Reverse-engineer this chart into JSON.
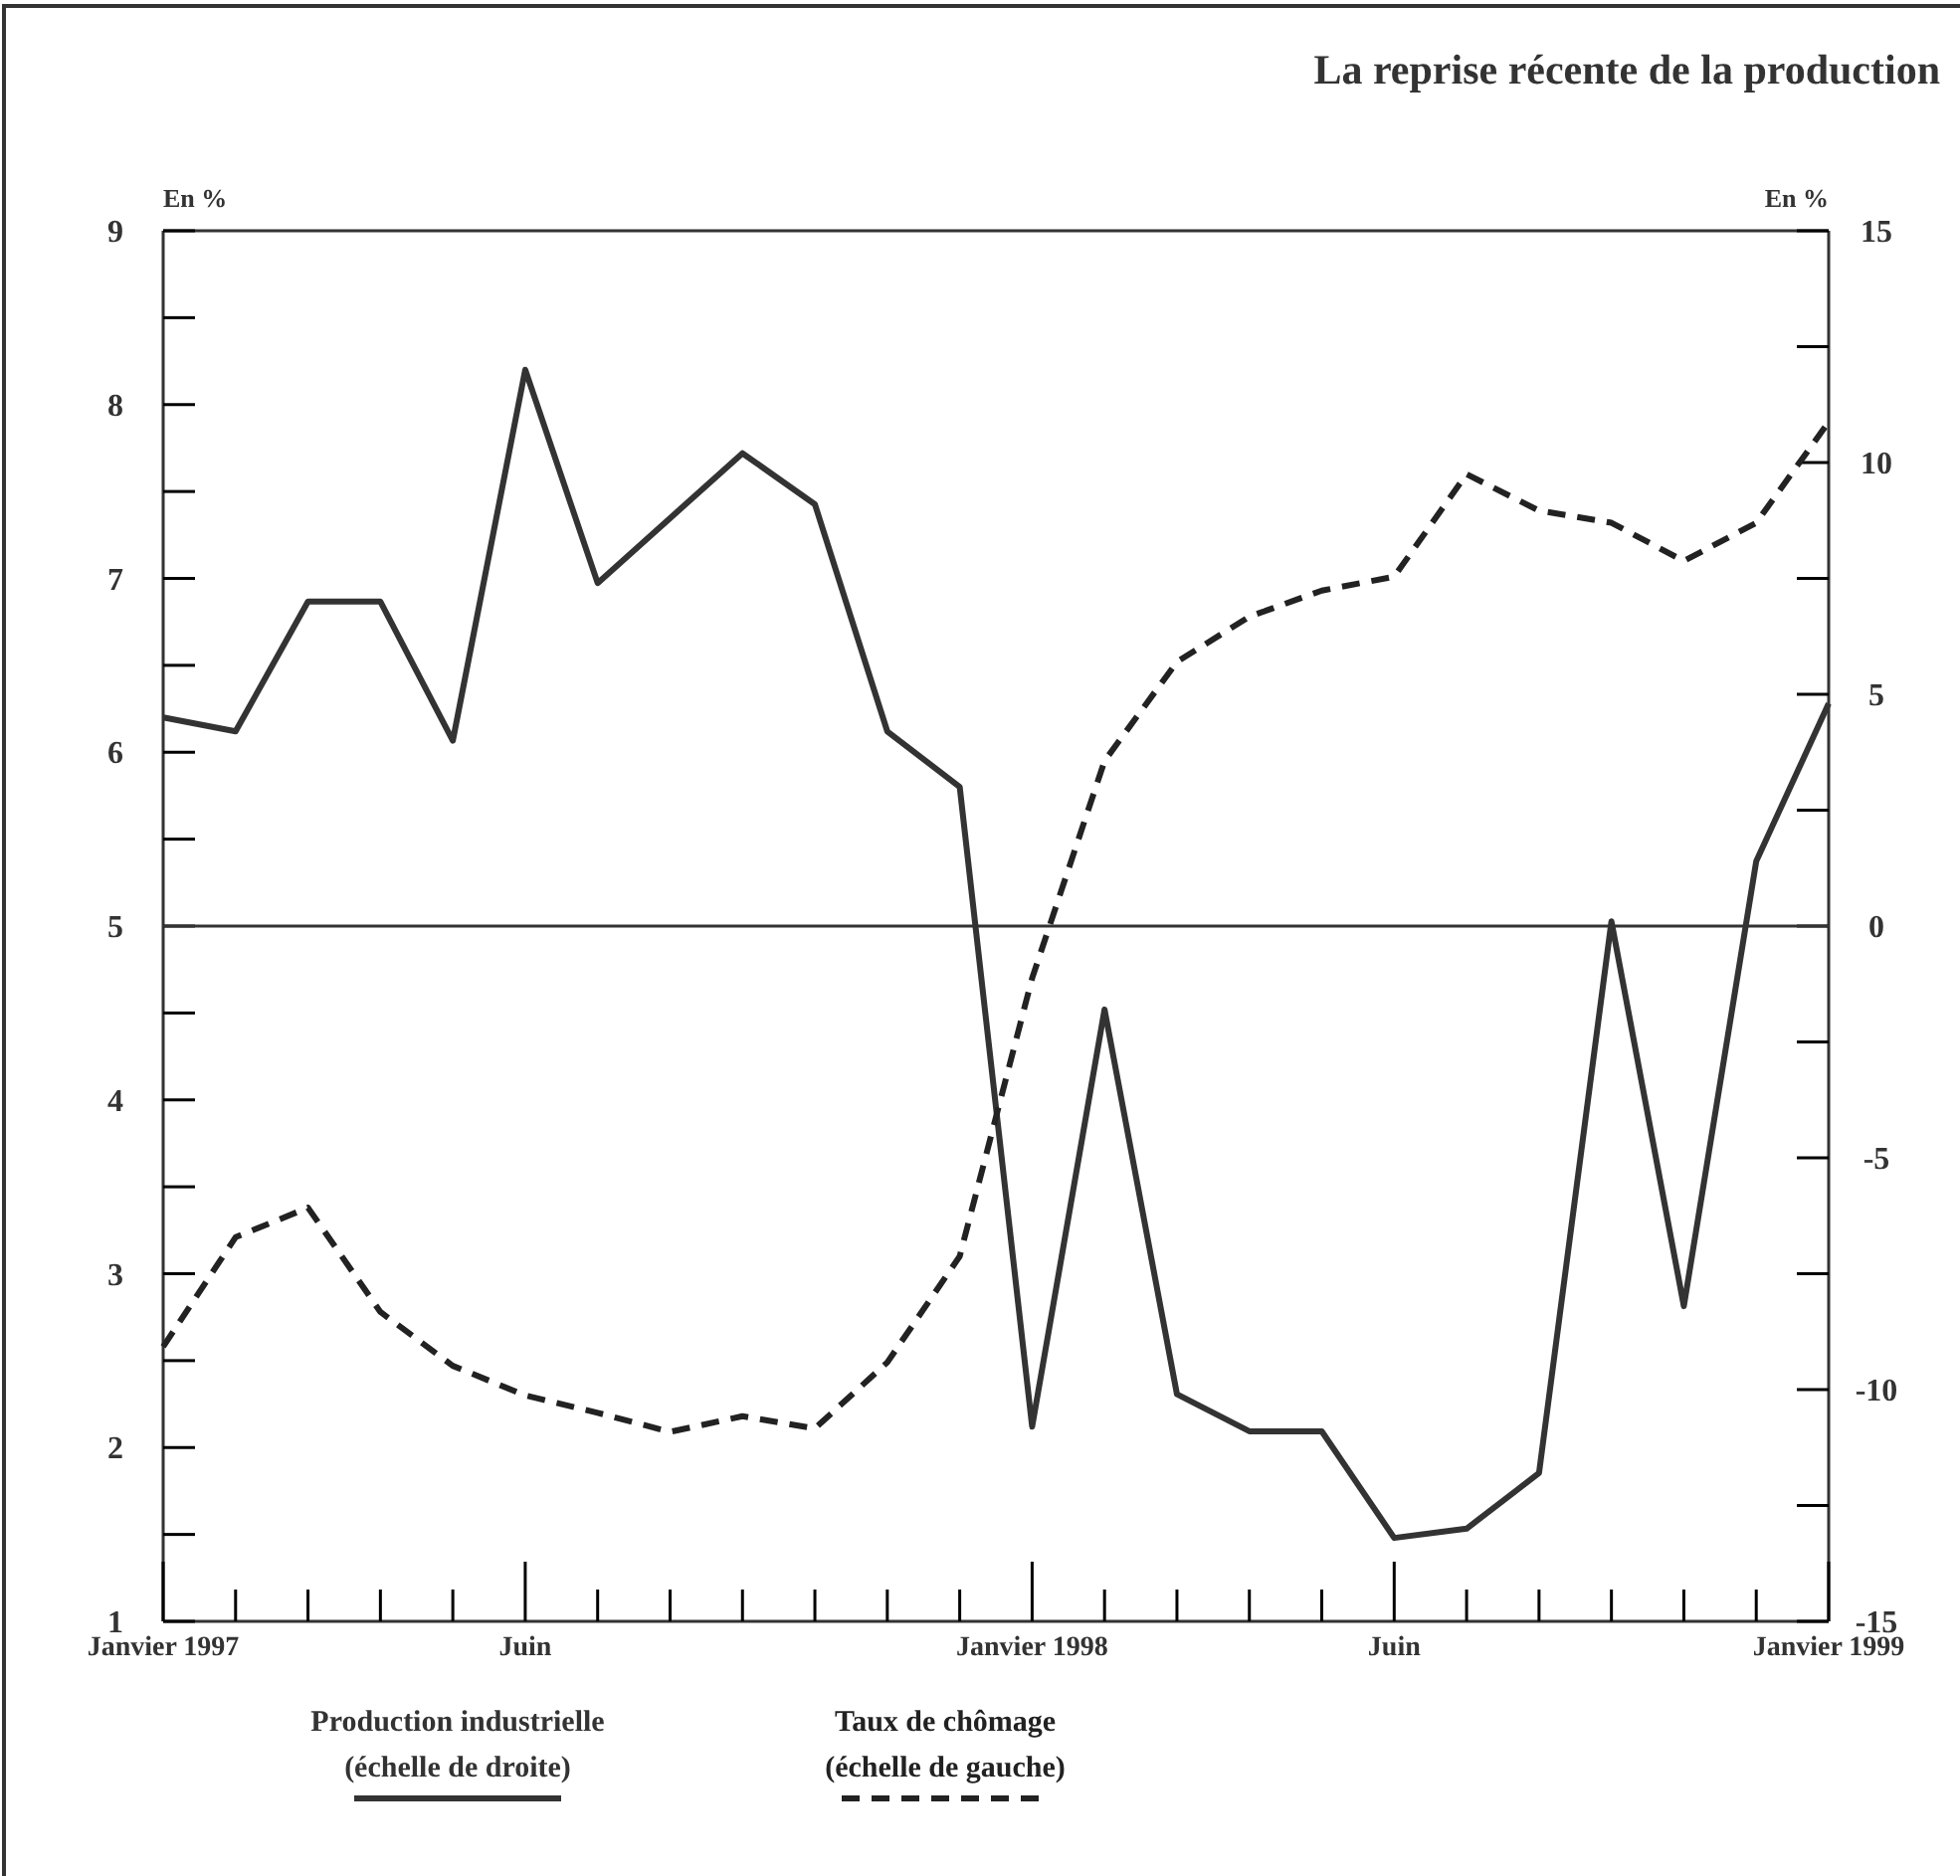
{
  "chart_data": {
    "type": "line",
    "title": "La reprise récente de la production",
    "ylabel": "En %",
    "y2label": "En %",
    "categories": [
      "Janvier 1997",
      null,
      null,
      null,
      null,
      "Juin",
      null,
      null,
      null,
      null,
      null,
      null,
      "Janvier 1998",
      null,
      null,
      null,
      null,
      "Juin",
      null,
      null,
      null,
      null,
      null,
      "Janvier 1999"
    ],
    "series": [
      {
        "name": "Production industrielle\n(échelle de droite)",
        "color": "#333333",
        "axis": "y2",
        "line_style": "solid",
        "values": [
          4.5,
          4.2,
          7.0,
          7.0,
          4.0,
          12.0,
          7.4,
          8.8,
          10.2,
          9.1,
          4.2,
          3.0,
          -10.8,
          -1.8,
          -10.1,
          -10.9,
          -10.9,
          -13.2,
          -13.0,
          -11.8,
          0.1,
          -8.2,
          1.4,
          4.8
        ]
      },
      {
        "name": "Taux de chômage\n(échelle de gauche)",
        "color": "#222222",
        "line_style": "dashed",
        "values": [
          2.58,
          3.21,
          3.38,
          2.78,
          2.47,
          2.3,
          2.2,
          2.09,
          2.18,
          2.11,
          2.49,
          3.1,
          4.7,
          5.95,
          6.52,
          6.78,
          6.93,
          7.01,
          7.6,
          7.39,
          7.32,
          7.1,
          7.32,
          7.9
        ]
      }
    ],
    "ylim": [
      1,
      9
    ],
    "yticks": [
      1,
      {
        "value": 1.5,
        "label": null
      },
      2,
      {
        "value": 2.5,
        "label": null
      },
      3,
      {
        "value": 3.5,
        "label": null
      },
      4,
      {
        "value": 4.5,
        "label": null
      },
      5,
      {
        "value": 5.5,
        "label": null
      },
      6,
      {
        "value": 6.5,
        "label": null
      },
      7,
      {
        "value": 7.5,
        "label": null
      },
      8,
      {
        "value": 8.5,
        "label": null
      },
      9
    ],
    "y2lim": [
      -15,
      15
    ],
    "y2ticks": [
      -15,
      {
        "value": -12.5,
        "label": null
      },
      -10,
      {
        "value": -7.5,
        "label": null
      },
      -5,
      {
        "value": -2.5,
        "label": null
      },
      0,
      {
        "value": 2.5,
        "label": null
      },
      5,
      {
        "value": 7.5,
        "label": null
      },
      10,
      {
        "value": 12.5,
        "label": null
      },
      15
    ],
    "ref_lines": [
      {
        "axis": "y2",
        "value": 0,
        "color": "#333333"
      }
    ],
    "grid": false,
    "legend": "bottom",
    "marker": "none"
  }
}
